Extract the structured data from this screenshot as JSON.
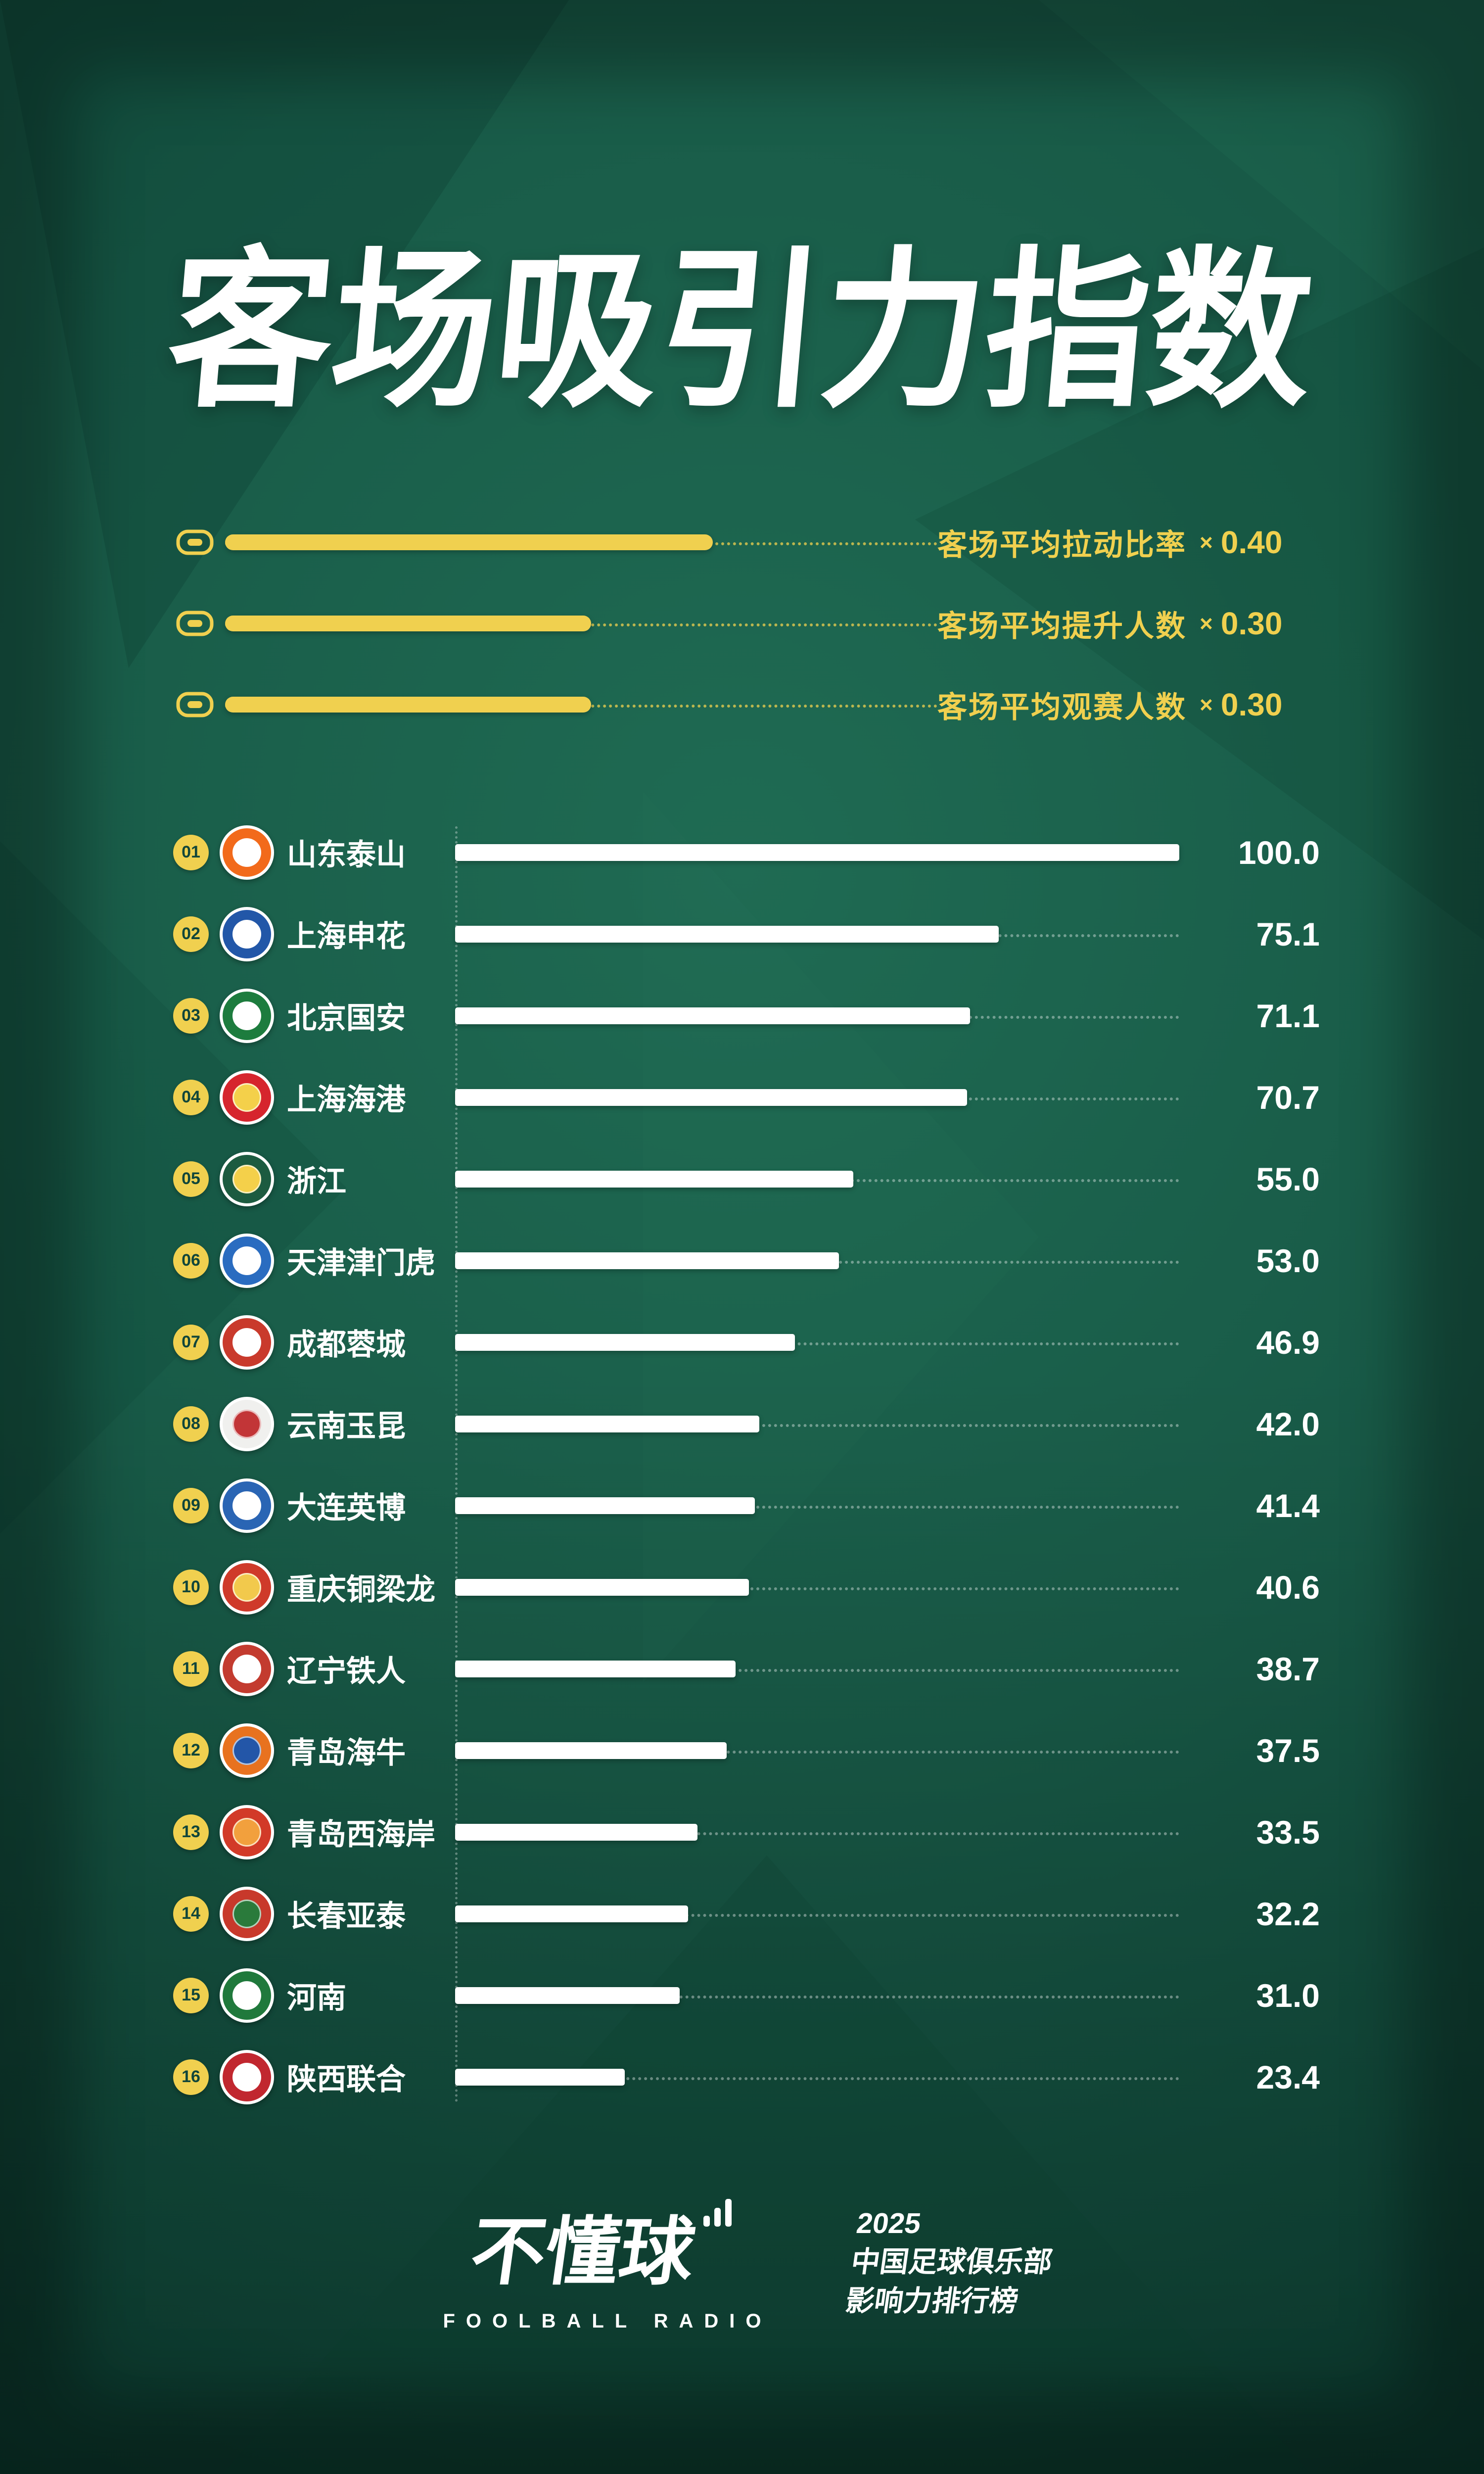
{
  "title": "客场吸引力指数",
  "legend": {
    "items": [
      {
        "icon": "stadium-icon",
        "label": "客场平均拉动比率",
        "times": "×",
        "weight": "0.40"
      },
      {
        "icon": "stadium-icon",
        "label": "客场平均提升人数",
        "times": "×",
        "weight": "0.30"
      },
      {
        "icon": "stadium-icon",
        "label": "客场平均观赛人数",
        "times": "×",
        "weight": "0.30"
      }
    ]
  },
  "ranking": {
    "rows": [
      {
        "rank": "01",
        "name": "山东泰山",
        "value": "100.0",
        "logo_outer": "#f26a1b",
        "logo_inner": "#ffffff"
      },
      {
        "rank": "02",
        "name": "上海申花",
        "value": "75.1",
        "logo_outer": "#2257a8",
        "logo_inner": "#ffffff"
      },
      {
        "rank": "03",
        "name": "北京国安",
        "value": "71.1",
        "logo_outer": "#1d7c3e",
        "logo_inner": "#ffffff"
      },
      {
        "rank": "04",
        "name": "上海海港",
        "value": "70.7",
        "logo_outer": "#d6252d",
        "logo_inner": "#f4d04a"
      },
      {
        "rank": "05",
        "name": "浙江",
        "value": "55.0",
        "logo_outer": "#1c5b40",
        "logo_inner": "#f4d04a"
      },
      {
        "rank": "06",
        "name": "天津津门虎",
        "value": "53.0",
        "logo_outer": "#2a6cc0",
        "logo_inner": "#ffffff"
      },
      {
        "rank": "07",
        "name": "成都蓉城",
        "value": "46.9",
        "logo_outer": "#c93a2c",
        "logo_inner": "#ffffff"
      },
      {
        "rank": "08",
        "name": "云南玉昆",
        "value": "42.0",
        "logo_outer": "#f0f0ee",
        "logo_inner": "#c23537"
      },
      {
        "rank": "09",
        "name": "大连英博",
        "value": "41.4",
        "logo_outer": "#2a65b4",
        "logo_inner": "#ffffff"
      },
      {
        "rank": "10",
        "name": "重庆铜梁龙",
        "value": "40.6",
        "logo_outer": "#cf3a2a",
        "logo_inner": "#f2c94c"
      },
      {
        "rank": "11",
        "name": "辽宁铁人",
        "value": "38.7",
        "logo_outer": "#c33b2f",
        "logo_inner": "#ffffff"
      },
      {
        "rank": "12",
        "name": "青岛海牛",
        "value": "37.5",
        "logo_outer": "#e8721f",
        "logo_inner": "#2356a8"
      },
      {
        "rank": "13",
        "name": "青岛西海岸",
        "value": "33.5",
        "logo_outer": "#d23a28",
        "logo_inner": "#f2a03d"
      },
      {
        "rank": "14",
        "name": "长春亚泰",
        "value": "32.2",
        "logo_outer": "#c8392b",
        "logo_inner": "#2a7a3b"
      },
      {
        "rank": "15",
        "name": "河南",
        "value": "31.0",
        "logo_outer": "#20793c",
        "logo_inner": "#ffffff"
      },
      {
        "rank": "16",
        "name": "陕西联合",
        "value": "23.4",
        "logo_outer": "#c1272f",
        "logo_inner": "#ffffff"
      }
    ]
  },
  "chart_data": {
    "type": "bar",
    "orientation": "horizontal",
    "title": "客场吸引力指数",
    "categories": [
      "山东泰山",
      "上海申花",
      "北京国安",
      "上海海港",
      "浙江",
      "天津津门虎",
      "成都蓉城",
      "云南玉昆",
      "大连英博",
      "重庆铜梁龙",
      "辽宁铁人",
      "青岛海牛",
      "青岛西海岸",
      "长春亚泰",
      "河南",
      "陕西联合"
    ],
    "values": [
      100.0,
      75.1,
      71.1,
      70.7,
      55.0,
      53.0,
      46.9,
      42.0,
      41.4,
      40.6,
      38.7,
      37.5,
      33.5,
      32.2,
      31.0,
      23.4
    ],
    "xlim": [
      0,
      100
    ],
    "grid": "dotted-guides",
    "legend_position": "top",
    "weights": [
      {
        "label": "客场平均拉动比率",
        "weight": 0.4
      },
      {
        "label": "客场平均提升人数",
        "weight": 0.3
      },
      {
        "label": "客场平均观赛人数",
        "weight": 0.3
      }
    ]
  },
  "footer": {
    "brand": "不懂球",
    "brand_icon": "signal-bars-icon",
    "brand_sub": "FOOLBALL RADIO",
    "year": "2025",
    "line1": "中国足球俱乐部",
    "line2": "影响力排行榜"
  },
  "colors": {
    "background": "#185a47",
    "accent_yellow": "#f0d04f",
    "bar_white": "#ffffff",
    "badge_text": "#11463a"
  }
}
